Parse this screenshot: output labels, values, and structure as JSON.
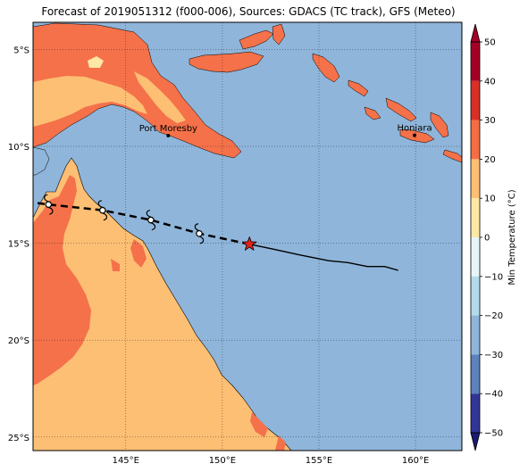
{
  "title": "Forecast of 2019051312 (f000-006), Sources: GDACS (TC track), GFS (Meteo)",
  "map": {
    "lon_range": [
      140.2,
      162.4
    ],
    "lat_range": [
      -25.7,
      -3.6
    ],
    "lon_ticks": [
      {
        "value": 145,
        "label": "145°E"
      },
      {
        "value": 150,
        "label": "150°E"
      },
      {
        "value": 155,
        "label": "155°E"
      },
      {
        "value": 160,
        "label": "160°E"
      }
    ],
    "lat_ticks": [
      {
        "value": -5,
        "label": "5°S"
      },
      {
        "value": -10,
        "label": "10°S"
      },
      {
        "value": -15,
        "label": "15°S"
      },
      {
        "value": -20,
        "label": "20°S"
      },
      {
        "value": -25,
        "label": "25°S"
      }
    ],
    "colors": {
      "ocean": "#8fb5da",
      "land_warm": "#fdbf74",
      "land_hot": "#f4714a",
      "land_cool": "#fee8a6",
      "coast": "#000000"
    },
    "places": [
      {
        "name": "Port Moresby",
        "lon": 147.2,
        "lat": -9.45
      },
      {
        "name": "Honiara",
        "lon": 159.95,
        "lat": -9.43
      }
    ]
  },
  "chart_data": {
    "type": "map",
    "title": "Forecast of 2019051312 (f000-006), Sources: GDACS (TC track), GFS (Meteo)",
    "variable": "Min Temperature (°C)",
    "track_observed": [
      {
        "lon": 159.1,
        "lat": -16.4
      },
      {
        "lon": 158.4,
        "lat": -16.2
      },
      {
        "lon": 157.5,
        "lat": -16.2
      },
      {
        "lon": 156.5,
        "lat": -16.0
      },
      {
        "lon": 155.5,
        "lat": -15.9
      },
      {
        "lon": 154.0,
        "lat": -15.6
      },
      {
        "lon": 152.6,
        "lat": -15.3
      },
      {
        "lon": 151.4,
        "lat": -15.05
      }
    ],
    "current_position": {
      "lon": 151.4,
      "lat": -15.05
    },
    "track_forecast": [
      {
        "lon": 151.4,
        "lat": -15.05
      },
      {
        "lon": 148.8,
        "lat": -14.5
      },
      {
        "lon": 146.3,
        "lat": -13.8
      },
      {
        "lon": 143.8,
        "lat": -13.3
      },
      {
        "lon": 141.0,
        "lat": -13.0
      },
      {
        "lon": 140.2,
        "lat": -12.9
      }
    ],
    "storm_symbols": [
      {
        "lon": 148.8,
        "lat": -14.5
      },
      {
        "lon": 146.3,
        "lat": -13.8
      },
      {
        "lon": 143.8,
        "lat": -13.3
      },
      {
        "lon": 141.0,
        "lat": -13.0
      }
    ]
  },
  "colorbar": {
    "label": "Min Temperature (°C)",
    "range": [
      -50,
      50
    ],
    "ticks": [
      50,
      40,
      30,
      20,
      10,
      0,
      -10,
      -20,
      -30,
      -40,
      -50
    ],
    "tick_labels": [
      "50",
      "40",
      "30",
      "20",
      "10",
      "0",
      "−10",
      "−20",
      "−30",
      "−40",
      "−50"
    ],
    "bands": [
      {
        "from": 40,
        "to": 50,
        "color": "#a50026"
      },
      {
        "from": 30,
        "to": 40,
        "color": "#d73027"
      },
      {
        "from": 20,
        "to": 30,
        "color": "#f46d43"
      },
      {
        "from": 10,
        "to": 20,
        "color": "#fdbf74"
      },
      {
        "from": 0,
        "to": 10,
        "color": "#fee8a6"
      },
      {
        "from": -10,
        "to": 0,
        "color": "#e6f5f7"
      },
      {
        "from": -20,
        "to": -10,
        "color": "#b2daea"
      },
      {
        "from": -30,
        "to": -20,
        "color": "#8fb5da"
      },
      {
        "from": -40,
        "to": -30,
        "color": "#5c83bc"
      },
      {
        "from": -50,
        "to": -40,
        "color": "#313695"
      }
    ],
    "extend_colors": {
      "top": "#a50026",
      "bottom": "#1a1a6e"
    }
  }
}
